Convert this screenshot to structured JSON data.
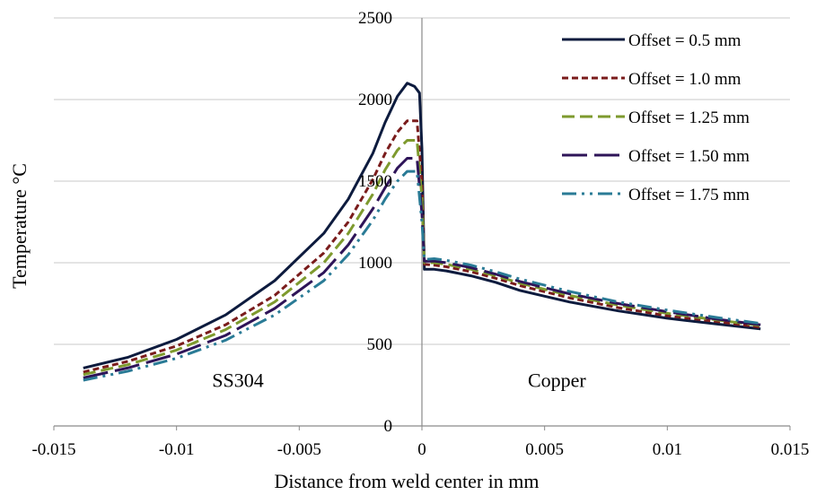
{
  "chart_data": {
    "type": "line",
    "xlabel": "Distance from weld center in mm",
    "ylabel": "Temperature °C",
    "xlim": [
      -0.015,
      0.015
    ],
    "ylim": [
      0,
      2500
    ],
    "x_ticks": [
      "-0.015",
      "-0.01",
      "-0.005",
      "0",
      "0.005",
      "0.01",
      "0.015"
    ],
    "y_ticks": [
      "0",
      "500",
      "1000",
      "1500",
      "2000",
      "2500"
    ],
    "grid": "horizontal",
    "legend_position": "top-right",
    "annotations": [
      {
        "text": "SS304",
        "x": -0.0075,
        "y": 260
      },
      {
        "text": "Copper",
        "x": 0.0055,
        "y": 260
      }
    ],
    "series": [
      {
        "name": "Offset = 0.5 mm",
        "color": "#0d1b3e",
        "dash": "solid",
        "points": [
          [
            -0.0138,
            355
          ],
          [
            -0.012,
            420
          ],
          [
            -0.01,
            530
          ],
          [
            -0.008,
            680
          ],
          [
            -0.006,
            890
          ],
          [
            -0.004,
            1180
          ],
          [
            -0.003,
            1390
          ],
          [
            -0.002,
            1670
          ],
          [
            -0.0015,
            1860
          ],
          [
            -0.001,
            2020
          ],
          [
            -0.0006,
            2100
          ],
          [
            -0.0003,
            2080
          ],
          [
            -0.0001,
            2040
          ],
          [
            0.0,
            1700
          ],
          [
            0.0001,
            960
          ],
          [
            0.0005,
            960
          ],
          [
            0.001,
            950
          ],
          [
            0.002,
            920
          ],
          [
            0.003,
            880
          ],
          [
            0.004,
            830
          ],
          [
            0.006,
            760
          ],
          [
            0.008,
            705
          ],
          [
            0.01,
            660
          ],
          [
            0.012,
            625
          ],
          [
            0.0138,
            595
          ]
        ]
      },
      {
        "name": "Offset = 1.0 mm",
        "color": "#7a1c1c",
        "dash": "short",
        "points": [
          [
            -0.0138,
            330
          ],
          [
            -0.012,
            395
          ],
          [
            -0.01,
            490
          ],
          [
            -0.008,
            620
          ],
          [
            -0.006,
            800
          ],
          [
            -0.004,
            1060
          ],
          [
            -0.003,
            1250
          ],
          [
            -0.002,
            1510
          ],
          [
            -0.0015,
            1670
          ],
          [
            -0.001,
            1800
          ],
          [
            -0.0006,
            1870
          ],
          [
            -0.0002,
            1870
          ],
          [
            0.0,
            1500
          ],
          [
            0.0001,
            990
          ],
          [
            0.0005,
            985
          ],
          [
            0.001,
            975
          ],
          [
            0.002,
            945
          ],
          [
            0.003,
            905
          ],
          [
            0.004,
            860
          ],
          [
            0.006,
            785
          ],
          [
            0.008,
            725
          ],
          [
            0.01,
            675
          ],
          [
            0.012,
            640
          ],
          [
            0.0138,
            605
          ]
        ]
      },
      {
        "name": "Offset = 1.25 mm",
        "color": "#7e9a2e",
        "dash": "medium",
        "points": [
          [
            -0.0138,
            315
          ],
          [
            -0.012,
            375
          ],
          [
            -0.01,
            465
          ],
          [
            -0.008,
            590
          ],
          [
            -0.006,
            760
          ],
          [
            -0.004,
            1000
          ],
          [
            -0.003,
            1180
          ],
          [
            -0.002,
            1420
          ],
          [
            -0.0015,
            1570
          ],
          [
            -0.001,
            1690
          ],
          [
            -0.0006,
            1750
          ],
          [
            -0.0002,
            1750
          ],
          [
            0.0,
            1400
          ],
          [
            0.0001,
            1000
          ],
          [
            0.0005,
            1000
          ],
          [
            0.001,
            990
          ],
          [
            0.002,
            960
          ],
          [
            0.003,
            920
          ],
          [
            0.004,
            875
          ],
          [
            0.006,
            800
          ],
          [
            0.008,
            740
          ],
          [
            0.01,
            690
          ],
          [
            0.012,
            650
          ],
          [
            0.0138,
            615
          ]
        ]
      },
      {
        "name": "Offset = 1.50 mm",
        "color": "#2e1458",
        "dash": "long",
        "points": [
          [
            -0.0138,
            295
          ],
          [
            -0.012,
            355
          ],
          [
            -0.01,
            440
          ],
          [
            -0.008,
            555
          ],
          [
            -0.006,
            720
          ],
          [
            -0.004,
            940
          ],
          [
            -0.003,
            1110
          ],
          [
            -0.002,
            1330
          ],
          [
            -0.0015,
            1460
          ],
          [
            -0.001,
            1580
          ],
          [
            -0.0006,
            1640
          ],
          [
            -0.0002,
            1640
          ],
          [
            0.0,
            1300
          ],
          [
            0.0001,
            1010
          ],
          [
            0.0005,
            1010
          ],
          [
            0.001,
            1000
          ],
          [
            0.002,
            970
          ],
          [
            0.003,
            930
          ],
          [
            0.004,
            885
          ],
          [
            0.006,
            810
          ],
          [
            0.008,
            750
          ],
          [
            0.01,
            700
          ],
          [
            0.012,
            655
          ],
          [
            0.0138,
            620
          ]
        ]
      },
      {
        "name": "Offset = 1.75 mm",
        "color": "#2a7b96",
        "dash": "dashdotdot",
        "points": [
          [
            -0.0138,
            280
          ],
          [
            -0.012,
            335
          ],
          [
            -0.01,
            415
          ],
          [
            -0.008,
            525
          ],
          [
            -0.006,
            680
          ],
          [
            -0.004,
            890
          ],
          [
            -0.003,
            1050
          ],
          [
            -0.002,
            1260
          ],
          [
            -0.0015,
            1390
          ],
          [
            -0.001,
            1500
          ],
          [
            -0.0006,
            1560
          ],
          [
            -0.0002,
            1560
          ],
          [
            0.0,
            1250
          ],
          [
            0.0001,
            1020
          ],
          [
            0.0005,
            1025
          ],
          [
            0.001,
            1015
          ],
          [
            0.002,
            985
          ],
          [
            0.003,
            945
          ],
          [
            0.004,
            900
          ],
          [
            0.006,
            825
          ],
          [
            0.008,
            760
          ],
          [
            0.01,
            710
          ],
          [
            0.012,
            665
          ],
          [
            0.0138,
            628
          ]
        ]
      }
    ]
  }
}
